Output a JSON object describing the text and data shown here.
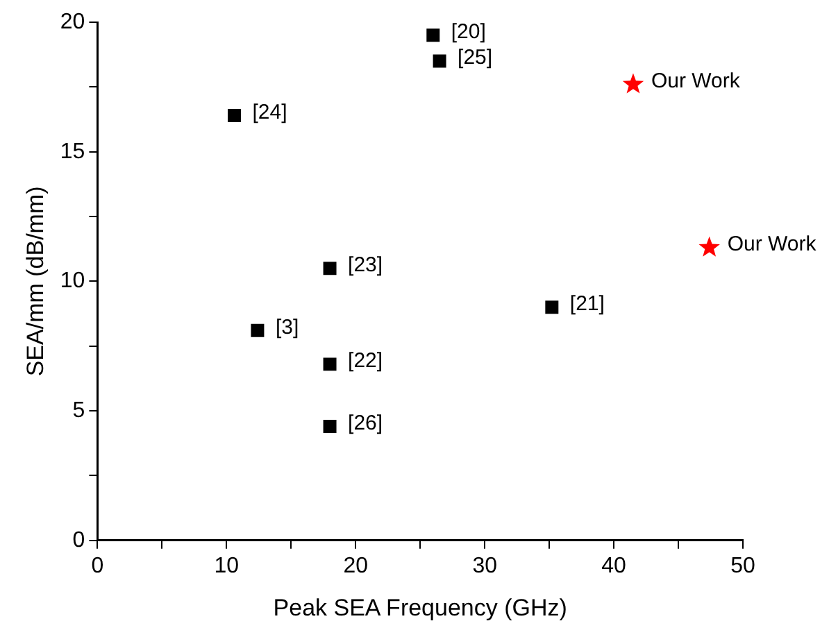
{
  "chart_data": {
    "type": "scatter",
    "xlabel": "Peak SEA Frequency (GHz)",
    "ylabel": "SEA/mm (dB/mm)",
    "series": [
      {
        "color": "#000000",
        "marker": "square",
        "x": [
          26.0,
          26.5,
          10.6,
          18.0,
          35.2,
          12.4,
          18.0,
          18.0
        ],
        "values": [
          19.5,
          18.5,
          16.4,
          10.5,
          9.0,
          8.1,
          6.8,
          4.4
        ]
      },
      {
        "color": "#ff0000",
        "marker": "star",
        "x": [
          41.5,
          47.4
        ],
        "values": [
          17.6,
          11.3
        ]
      }
    ],
    "annotations": [
      {
        "text": "[20]",
        "x": 26.0,
        "y": 19.5
      },
      {
        "text": "[25]",
        "x": 26.5,
        "y": 18.5
      },
      {
        "text": "[24]",
        "x": 10.6,
        "y": 16.4
      },
      {
        "text": "[23]",
        "x": 18.0,
        "y": 10.5
      },
      {
        "text": "[21]",
        "x": 35.2,
        "y": 9.0
      },
      {
        "text": "[3]",
        "x": 12.4,
        "y": 8.1
      },
      {
        "text": "[22]",
        "x": 18.0,
        "y": 6.8
      },
      {
        "text": "[26]",
        "x": 18.0,
        "y": 4.4
      },
      {
        "text": "Our Work",
        "x": 41.5,
        "y": 17.6
      },
      {
        "text": "Our Work",
        "x": 47.4,
        "y": 11.3
      }
    ],
    "xlim": [
      0,
      50
    ],
    "xticks": [
      0,
      {
        "value": 5,
        "label": null
      },
      10,
      {
        "value": 15,
        "label": null
      },
      20,
      {
        "value": 25,
        "label": null
      },
      30,
      {
        "value": 35,
        "label": null
      },
      40,
      {
        "value": 45,
        "label": null
      },
      50
    ],
    "ylim": [
      0,
      20
    ],
    "yticks": [
      0,
      {
        "value": 2.5,
        "label": null
      },
      5,
      {
        "value": 7.5,
        "label": null
      },
      10,
      {
        "value": 12.5,
        "label": null
      },
      15,
      {
        "value": 17.5,
        "label": null
      },
      20
    ],
    "grid": false,
    "legend": false
  }
}
